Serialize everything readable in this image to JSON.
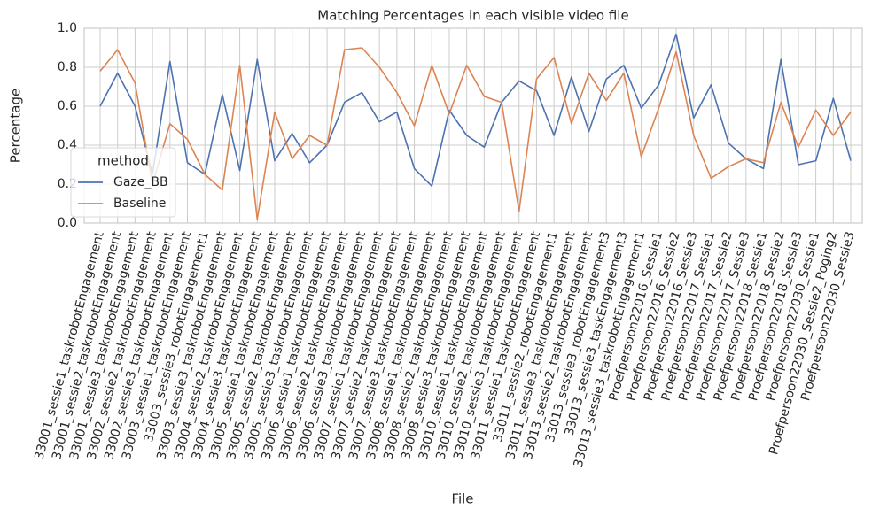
{
  "chart_data": {
    "type": "line",
    "title": "Matching Percentages in each visible video file",
    "x_label": "File",
    "y_label": "Percentage",
    "legend_title": "method",
    "legend_loc": "lower left",
    "grid": true,
    "categories": [
      "33001_sessie1_taskrobotEngagement",
      "33001_sessie2_taskrobotEngagement",
      "33001_sessie3_taskrobotEngagement",
      "33002_sessie2_taskrobotEngagement",
      "33002_sessie3_taskrobotEngagement",
      "33003_sessie1_taskrobotEngagement",
      "33003_sessie3_robotEngagement1",
      "33003_sessie3_taskrobotEngagement",
      "33004_sessie2_taskrobotEngagement",
      "33004_sessie3_taskrobotEngagement",
      "33005_sessie1_taskrobotEngagement",
      "33005_sessie2_taskrobotEngagement",
      "33005_sessie3_taskrobotEngagement",
      "33006_sessie1_taskrobotEngagement",
      "33006_sessie2_taskrobotEngagement",
      "33006_sessie3_taskrobotEngagement",
      "33007_sessie1_taskrobotEngagement",
      "33007_sessie2_taskrobotEngagement",
      "33007_sessie3_taskrobotEngagement",
      "33008_sessie1_taskrobotEngagement",
      "33008_sessie2_taskrobotEngagement",
      "33008_sessie3_taskrobotEngagement",
      "33010_sessie1_taskrobotEngagement",
      "33010_sessie2_taskrobotEngagement",
      "33010_sessie3_taskrobotEngagement",
      "33011_sessie1_taskrobotEngagement",
      "33011_sessie2_robotEngagement1",
      "33011_sessie3_taskrobotEngagement",
      "33013_sessie2_taskrobotEngagement",
      "33013_sessie3_robotEngagement3",
      "33013_sessie3_taskEngagement3",
      "33013_sessie3_taskrobotEngagement1",
      "Proefpersoon22016_Sessie1",
      "Proefpersoon22016_Sessie2",
      "Proefpersoon22016_Sessie3",
      "Proefpersoon22017_Sessie1",
      "Proefpersoon22017_Sessie2",
      "Proefpersoon22017_Sessie3",
      "Proefpersoon22018_Sessie1",
      "Proefpersoon22018_Sessie2",
      "Proefpersoon22018_Sessie3",
      "Proefpersoon22030_Sessie1",
      "Proefpersoon22030_Sessie2_Poging2",
      "Proefpersoon22030_Sessie3"
    ],
    "series": [
      {
        "name": "Gaze_BB",
        "color": "#4c72b0",
        "values": [
          0.6,
          0.77,
          0.6,
          0.25,
          0.83,
          0.31,
          0.25,
          0.66,
          0.27,
          0.84,
          0.32,
          0.46,
          0.31,
          0.4,
          0.62,
          0.67,
          0.52,
          0.57,
          0.28,
          0.19,
          0.58,
          0.45,
          0.39,
          0.62,
          0.73,
          0.68,
          0.45,
          0.75,
          0.47,
          0.74,
          0.81,
          0.59,
          0.71,
          0.97,
          0.54,
          0.71,
          0.41,
          0.33,
          0.28,
          0.84,
          0.3,
          0.32,
          0.64,
          0.32
        ]
      },
      {
        "name": "Baseline",
        "color": "#dd8452",
        "values": [
          0.78,
          0.89,
          0.72,
          0.2,
          0.51,
          0.43,
          0.25,
          0.17,
          0.81,
          0.02,
          0.57,
          0.33,
          0.45,
          0.4,
          0.89,
          0.9,
          0.8,
          0.67,
          0.5,
          0.81,
          0.56,
          0.81,
          0.65,
          0.62,
          0.06,
          0.74,
          0.85,
          0.51,
          0.77,
          0.63,
          0.77,
          0.34,
          0.59,
          0.88,
          0.45,
          0.23,
          0.29,
          0.33,
          0.31,
          0.62,
          0.39,
          0.58,
          0.45,
          0.57
        ]
      }
    ],
    "ylim": [
      0,
      1
    ],
    "yticks": [
      {
        "value": 0,
        "label": "0.0"
      },
      0.2,
      0.4,
      0.6,
      0.8,
      {
        "value": 1,
        "label": "1.0"
      }
    ]
  }
}
